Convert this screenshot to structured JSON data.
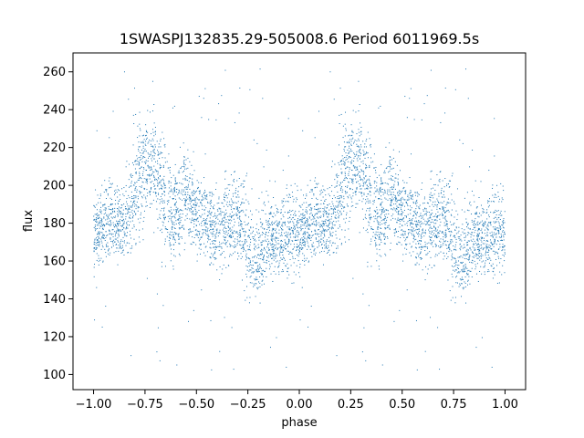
{
  "chart_data": {
    "type": "scatter",
    "title": "1SWASPJ132835.29-505008.6 Period 6011969.5s",
    "xlabel": "phase",
    "ylabel": "flux",
    "xlim": [
      -1.1,
      1.1
    ],
    "ylim": [
      92,
      270
    ],
    "x_ticks": [
      -1.0,
      -0.75,
      -0.5,
      -0.25,
      0.0,
      0.25,
      0.5,
      0.75,
      1.0
    ],
    "x_tick_labels": [
      "−1.00",
      "−0.75",
      "−0.50",
      "−0.25",
      "0.00",
      "0.25",
      "0.50",
      "0.75",
      "1.00"
    ],
    "y_ticks": [
      100,
      120,
      140,
      160,
      180,
      200,
      220,
      240,
      260
    ],
    "y_tick_labels": [
      "100",
      "120",
      "140",
      "160",
      "180",
      "200",
      "220",
      "240",
      "260"
    ],
    "grid": false,
    "marker_color": "#1f77b4",
    "folded": true,
    "phase_profile": {
      "phase": [
        0.0,
        0.05,
        0.1,
        0.15,
        0.2,
        0.25,
        0.3,
        0.35,
        0.4,
        0.45,
        0.5,
        0.55,
        0.6,
        0.65,
        0.7,
        0.75,
        0.8,
        0.85,
        0.9,
        0.95
      ],
      "flux_center": [
        174,
        180,
        182,
        178,
        195,
        212,
        210,
        188,
        183,
        196,
        186,
        182,
        176,
        180,
        186,
        170,
        158,
        176,
        172,
        174
      ],
      "flux_spread": [
        10,
        10,
        10,
        10,
        16,
        14,
        16,
        14,
        12,
        12,
        10,
        10,
        10,
        12,
        10,
        14,
        12,
        10,
        10,
        10
      ]
    },
    "outlier_range": [
      100,
      262
    ]
  }
}
